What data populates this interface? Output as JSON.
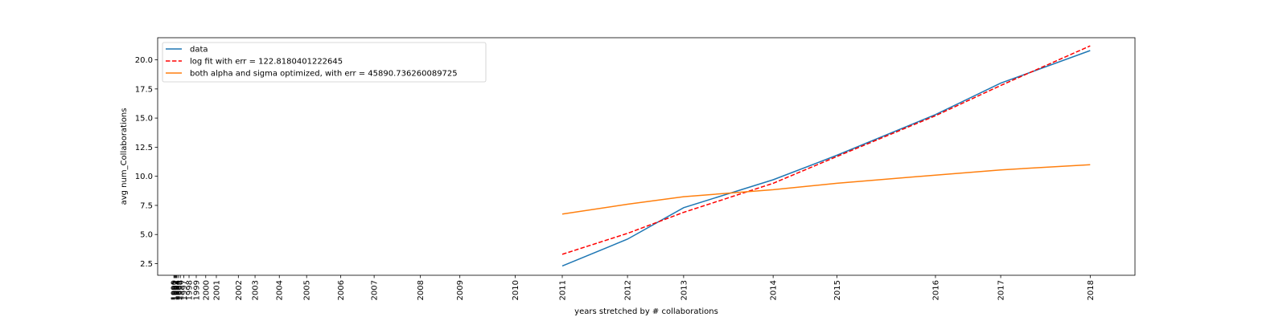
{
  "chart_data": {
    "type": "line",
    "xlabel": "years stretched by # collaborations",
    "ylabel": "avg num_Collaborations",
    "ylim": [
      1.5,
      21.9
    ],
    "yticks": [
      2.5,
      5.0,
      7.5,
      10.0,
      12.5,
      15.0,
      17.5,
      20.0
    ],
    "ytick_labels": [
      "2.5",
      "5.0",
      "7.5",
      "10.0",
      "12.5",
      "15.0",
      "17.5",
      "20.0"
    ],
    "x_tick_labels": [
      "1990",
      "1991",
      "1992",
      "1993",
      "1994",
      "1995",
      "1996",
      "1997",
      "1998",
      "1999",
      "2000",
      "2001",
      "2002",
      "2003",
      "2004",
      "2005",
      "2006",
      "2007",
      "2008",
      "2009",
      "2010",
      "2011",
      "2012",
      "2013",
      "2014",
      "2015",
      "2016",
      "2017",
      "2018"
    ],
    "x_stretched": [
      0,
      0.1,
      0.2,
      0.3,
      0.4,
      0.6,
      0.85,
      1.3,
      2.0,
      2.95,
      4.2,
      5.6,
      8.5,
      10.7,
      13.9,
      17.5,
      22.0,
      26.4,
      32.5,
      37.7,
      45.0,
      51.2,
      59.8,
      67.2,
      79.0,
      87.4,
      100.4,
      109.0,
      120.8
    ],
    "series": [
      {
        "name": "data",
        "color": "#1f77b4",
        "style": "solid",
        "x": [
          "2011",
          "2012",
          "2013",
          "2014",
          "2015",
          "2016",
          "2017",
          "2018"
        ],
        "y": [
          2.3,
          4.6,
          7.3,
          9.7,
          11.8,
          15.3,
          18.0,
          20.8
        ]
      },
      {
        "name": "log fit with err = 122.8180401222645",
        "color": "#ff0000",
        "style": "dashed",
        "x": [
          "2011",
          "2012",
          "2013",
          "2014",
          "2015",
          "2016",
          "2017",
          "2018"
        ],
        "y": [
          3.3,
          5.1,
          6.9,
          9.4,
          11.7,
          15.2,
          17.8,
          21.2
        ]
      },
      {
        "name": "both alpha and sigma optimized, with err = 45890.736260089725",
        "color": "#ff7f0e",
        "style": "solid",
        "x": [
          "2011",
          "2012",
          "2013",
          "2014",
          "2015",
          "2016",
          "2017",
          "2018"
        ],
        "y": [
          6.75,
          7.6,
          8.25,
          8.85,
          9.4,
          10.1,
          10.55,
          11.0
        ]
      }
    ],
    "legend_position": "upper-left",
    "grid": false
  }
}
